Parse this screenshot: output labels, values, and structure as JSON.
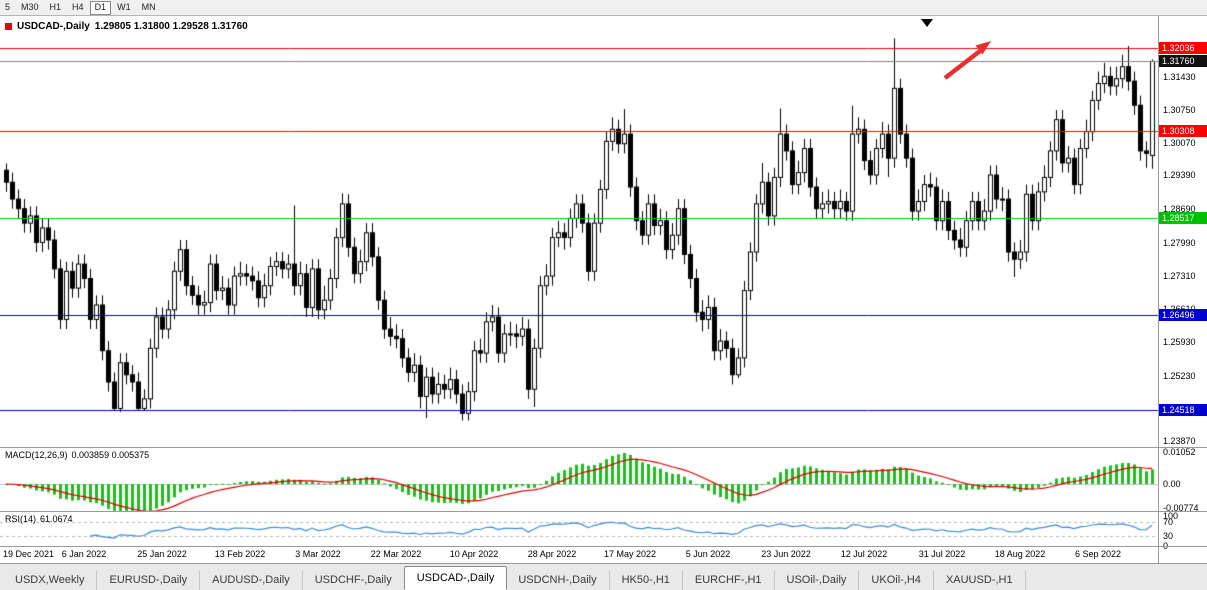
{
  "toolbar": {
    "timeframes": [
      {
        "label": "5",
        "active": false
      },
      {
        "label": "M30",
        "active": false
      },
      {
        "label": "H1",
        "active": false
      },
      {
        "label": "H4",
        "active": false
      },
      {
        "label": "D1",
        "active": true
      },
      {
        "label": "W1",
        "active": false
      },
      {
        "label": "MN",
        "active": false
      }
    ]
  },
  "chart": {
    "symbol_period": "USDCAD-,Daily",
    "ohlc_text": "1.29805 1.31800 1.29528 1.31760",
    "axis_labels": [
      "1.31430",
      "1.30750",
      "1.30070",
      "1.29390",
      "1.28690",
      "1.27990",
      "1.27310",
      "1.26610",
      "1.25930",
      "1.25230",
      "1.23870"
    ],
    "badges": [
      {
        "label": "1.32036",
        "price": 1.32036,
        "bg": "#ff0000"
      },
      {
        "label": "1.31760",
        "price": 1.3176,
        "bg": "#111111"
      },
      {
        "label": "1.30308",
        "price": 1.30308,
        "bg": "#ff0000"
      },
      {
        "label": "1.28517",
        "price": 1.28517,
        "bg": "#00c000"
      },
      {
        "label": "1.26496",
        "price": 1.26496,
        "bg": "#0000d0"
      },
      {
        "label": "1.24518",
        "price": 1.24518,
        "bg": "#0000d0"
      }
    ],
    "macd_label": "MACD(12,26,9)",
    "macd_values": "0.003859 0.005375",
    "macd_axis": [
      {
        "label": "0.01052",
        "value": 0.01052
      },
      {
        "label": "0.00",
        "value": 0
      },
      {
        "label": "-0.00774",
        "value": -0.00774
      }
    ],
    "rsi_label": "RSI(14)",
    "rsi_value": "61.0674",
    "rsi_axis": [
      {
        "label": "100",
        "value": 100
      },
      {
        "label": "70",
        "value": 70
      },
      {
        "label": "30",
        "value": 30
      },
      {
        "label": "0",
        "value": 0
      }
    ]
  },
  "chart_data": {
    "type": "candlestick",
    "symbol": "USDCAD",
    "period": "Daily",
    "display_ohlc": {
      "open": 1.29805,
      "high": 1.318,
      "low": 1.29528,
      "close": 1.3176
    },
    "ylim": [
      1.2375,
      1.3262
    ],
    "price_lines": [
      {
        "price": 1.32036,
        "color": "#ff0000"
      },
      {
        "price": 1.30308,
        "color": "#ff0000"
      },
      {
        "price": 1.28517,
        "color": "#00c800"
      },
      {
        "price": 1.26496,
        "color": "#0000d0"
      },
      {
        "price": 1.24518,
        "color": "#0000d0"
      }
    ],
    "bid_line": {
      "price": 1.3176,
      "color": "#808080"
    },
    "x_labels": [
      "19 Dec 2021",
      "6 Jan 2022",
      "25 Jan 2022",
      "13 Feb 2022",
      "3 Mar 2022",
      "22 Mar 2022",
      "10 Apr 2022",
      "28 Apr 2022",
      "17 May 2022",
      "5 Jun 2022",
      "23 Jun 2022",
      "12 Jul 2022",
      "31 Jul 2022",
      "18 Aug 2022",
      "6 Sep 2022"
    ],
    "x_label_every": 13,
    "style": {
      "up_fill": "#ffffff",
      "down_fill": "#000000",
      "outline": "#000000"
    },
    "indicators": {
      "macd": {
        "fast": 12,
        "slow": 26,
        "signal": 9,
        "main_value": 0.003859,
        "signal_value": 0.005375,
        "range": [
          -0.0088,
          0.0118
        ],
        "histogram_color": "#22bb22",
        "signal_color": "#dd0000"
      },
      "rsi": {
        "period": 14,
        "value": 61.0674,
        "levels": [
          70,
          30
        ],
        "range": [
          0,
          100
        ],
        "line_color": "#3c8cd8"
      }
    },
    "candles": [
      [
        1.295,
        1.2964,
        1.2905,
        1.2925
      ],
      [
        1.2925,
        1.2945,
        1.287,
        1.289
      ],
      [
        1.289,
        1.291,
        1.285,
        1.287
      ],
      [
        1.287,
        1.289,
        1.282,
        1.284
      ],
      [
        1.284,
        1.2875,
        1.282,
        1.2855
      ],
      [
        1.2855,
        1.2875,
        1.278,
        1.28
      ],
      [
        1.28,
        1.285,
        1.278,
        1.283
      ],
      [
        1.283,
        1.285,
        1.2785,
        1.2805
      ],
      [
        1.2805,
        1.2825,
        1.2725,
        1.2745
      ],
      [
        1.2745,
        1.2765,
        1.262,
        1.264
      ],
      [
        1.264,
        1.276,
        1.262,
        1.274
      ],
      [
        1.274,
        1.276,
        1.2685,
        1.2705
      ],
      [
        1.2705,
        1.2775,
        1.2685,
        1.2755
      ],
      [
        1.2755,
        1.2775,
        1.2705,
        1.2725
      ],
      [
        1.2725,
        1.2745,
        1.262,
        1.264
      ],
      [
        1.264,
        1.269,
        1.262,
        1.267
      ],
      [
        1.267,
        1.269,
        1.2555,
        1.2575
      ],
      [
        1.2575,
        1.2595,
        1.249,
        1.251
      ],
      [
        1.251,
        1.253,
        1.245,
        1.2455
      ],
      [
        1.2455,
        1.257,
        1.2448,
        1.255
      ],
      [
        1.255,
        1.257,
        1.2505,
        1.2525
      ],
      [
        1.2525,
        1.2545,
        1.249,
        1.251
      ],
      [
        1.251,
        1.253,
        1.2452,
        1.2455
      ],
      [
        1.2455,
        1.2495,
        1.245,
        1.2475
      ],
      [
        1.2475,
        1.26,
        1.2455,
        1.258
      ],
      [
        1.258,
        1.2665,
        1.256,
        1.2645
      ],
      [
        1.2645,
        1.2665,
        1.26,
        1.262
      ],
      [
        1.262,
        1.268,
        1.26,
        1.266
      ],
      [
        1.266,
        1.276,
        1.264,
        1.274
      ],
      [
        1.274,
        1.2805,
        1.272,
        1.2785
      ],
      [
        1.2785,
        1.2805,
        1.269,
        1.271
      ],
      [
        1.271,
        1.273,
        1.267,
        1.269
      ],
      [
        1.269,
        1.271,
        1.265,
        1.267
      ],
      [
        1.267,
        1.27,
        1.265,
        1.2675
      ],
      [
        1.2675,
        1.2775,
        1.2655,
        1.2755
      ],
      [
        1.2755,
        1.2775,
        1.268,
        1.27
      ],
      [
        1.27,
        1.273,
        1.268,
        1.2705
      ],
      [
        1.2705,
        1.2725,
        1.265,
        1.267
      ],
      [
        1.267,
        1.275,
        1.265,
        1.273
      ],
      [
        1.273,
        1.276,
        1.271,
        1.2735
      ],
      [
        1.2735,
        1.2755,
        1.271,
        1.273
      ],
      [
        1.273,
        1.275,
        1.27,
        1.272
      ],
      [
        1.272,
        1.274,
        1.2665,
        1.2685
      ],
      [
        1.2685,
        1.2735,
        1.2665,
        1.271
      ],
      [
        1.271,
        1.277,
        1.269,
        1.275
      ],
      [
        1.275,
        1.278,
        1.273,
        1.276
      ],
      [
        1.276,
        1.278,
        1.2725,
        1.2745
      ],
      [
        1.2745,
        1.2775,
        1.2725,
        1.2755
      ],
      [
        1.2755,
        1.2877,
        1.269,
        1.271
      ],
      [
        1.271,
        1.276,
        1.269,
        1.2735
      ],
      [
        1.2735,
        1.2755,
        1.2645,
        1.2665
      ],
      [
        1.2665,
        1.2765,
        1.2645,
        1.2745
      ],
      [
        1.2745,
        1.2765,
        1.264,
        1.266
      ],
      [
        1.266,
        1.271,
        1.264,
        1.268
      ],
      [
        1.268,
        1.2745,
        1.266,
        1.2725
      ],
      [
        1.2725,
        1.283,
        1.2705,
        1.281
      ],
      [
        1.281,
        1.2902,
        1.279,
        1.288
      ],
      [
        1.288,
        1.29,
        1.277,
        1.279
      ],
      [
        1.279,
        1.281,
        1.2715,
        1.2735
      ],
      [
        1.2735,
        1.2785,
        1.2715,
        1.276
      ],
      [
        1.276,
        1.284,
        1.274,
        1.282
      ],
      [
        1.282,
        1.284,
        1.275,
        1.277
      ],
      [
        1.277,
        1.279,
        1.266,
        1.268
      ],
      [
        1.268,
        1.27,
        1.26,
        1.262
      ],
      [
        1.262,
        1.2645,
        1.2585,
        1.2605
      ],
      [
        1.2605,
        1.263,
        1.258,
        1.26
      ],
      [
        1.26,
        1.262,
        1.254,
        1.256
      ],
      [
        1.256,
        1.258,
        1.251,
        1.253
      ],
      [
        1.253,
        1.257,
        1.251,
        1.2545
      ],
      [
        1.2545,
        1.2565,
        1.2455,
        1.248
      ],
      [
        1.248,
        1.254,
        1.2435,
        1.252
      ],
      [
        1.252,
        1.254,
        1.2465,
        1.2485
      ],
      [
        1.2485,
        1.253,
        1.2465,
        1.2505
      ],
      [
        1.2505,
        1.2525,
        1.2475,
        1.2495
      ],
      [
        1.2495,
        1.254,
        1.2475,
        1.2515
      ],
      [
        1.2515,
        1.2535,
        1.2465,
        1.2485
      ],
      [
        1.2485,
        1.2505,
        1.243,
        1.2445
      ],
      [
        1.2445,
        1.251,
        1.243,
        1.249
      ],
      [
        1.249,
        1.2595,
        1.247,
        1.2575
      ],
      [
        1.2575,
        1.26,
        1.255,
        1.257
      ],
      [
        1.257,
        1.2655,
        1.255,
        1.2635
      ],
      [
        1.2635,
        1.267,
        1.2615,
        1.2645
      ],
      [
        1.2645,
        1.2665,
        1.255,
        1.257
      ],
      [
        1.257,
        1.263,
        1.255,
        1.261
      ],
      [
        1.261,
        1.2635,
        1.2585,
        1.261
      ],
      [
        1.261,
        1.263,
        1.258,
        1.2605
      ],
      [
        1.2605,
        1.2645,
        1.2585,
        1.262
      ],
      [
        1.262,
        1.264,
        1.2475,
        1.2495
      ],
      [
        1.2495,
        1.26,
        1.2458,
        1.258
      ],
      [
        1.258,
        1.273,
        1.256,
        1.271
      ],
      [
        1.271,
        1.2755,
        1.269,
        1.273
      ],
      [
        1.273,
        1.283,
        1.271,
        1.281
      ],
      [
        1.281,
        1.2845,
        1.279,
        1.282
      ],
      [
        1.282,
        1.284,
        1.2785,
        1.281
      ],
      [
        1.281,
        1.287,
        1.279,
        1.285
      ],
      [
        1.285,
        1.29,
        1.283,
        1.288
      ],
      [
        1.288,
        1.29,
        1.282,
        1.284
      ],
      [
        1.284,
        1.286,
        1.272,
        1.274
      ],
      [
        1.274,
        1.286,
        1.272,
        1.284
      ],
      [
        1.284,
        1.293,
        1.282,
        1.291
      ],
      [
        1.291,
        1.303,
        1.289,
        1.301
      ],
      [
        1.301,
        1.306,
        1.299,
        1.3035
      ],
      [
        1.3035,
        1.3055,
        1.2985,
        1.3005
      ],
      [
        1.3005,
        1.3077,
        1.2985,
        1.3025
      ],
      [
        1.3025,
        1.3045,
        1.2895,
        1.2915
      ],
      [
        1.2915,
        1.2935,
        1.2825,
        1.2845
      ],
      [
        1.2845,
        1.2865,
        1.2795,
        1.2815
      ],
      [
        1.2815,
        1.29,
        1.2795,
        1.288
      ],
      [
        1.288,
        1.29,
        1.2815,
        1.2835
      ],
      [
        1.2835,
        1.287,
        1.2815,
        1.2845
      ],
      [
        1.2845,
        1.2865,
        1.2765,
        1.2785
      ],
      [
        1.2785,
        1.284,
        1.2765,
        1.2815
      ],
      [
        1.2815,
        1.289,
        1.2795,
        1.287
      ],
      [
        1.287,
        1.289,
        1.2755,
        1.2775
      ],
      [
        1.2775,
        1.2795,
        1.2705,
        1.2725
      ],
      [
        1.2725,
        1.2745,
        1.2635,
        1.2655
      ],
      [
        1.2655,
        1.268,
        1.2615,
        1.264
      ],
      [
        1.264,
        1.269,
        1.262,
        1.2665
      ],
      [
        1.2665,
        1.2685,
        1.2555,
        1.2575
      ],
      [
        1.2575,
        1.262,
        1.2555,
        1.2595
      ],
      [
        1.2595,
        1.2615,
        1.256,
        1.258
      ],
      [
        1.258,
        1.26,
        1.2505,
        1.2525
      ],
      [
        1.2525,
        1.258,
        1.2518,
        1.256
      ],
      [
        1.256,
        1.272,
        1.254,
        1.27
      ],
      [
        1.27,
        1.28,
        1.268,
        1.278
      ],
      [
        1.278,
        1.29,
        1.276,
        1.288
      ],
      [
        1.288,
        1.2965,
        1.286,
        1.2925
      ],
      [
        1.2925,
        1.2945,
        1.2835,
        1.2855
      ],
      [
        1.2855,
        1.2955,
        1.2835,
        1.2935
      ],
      [
        1.2935,
        1.3078,
        1.2915,
        1.3025
      ],
      [
        1.3025,
        1.3045,
        1.297,
        1.299
      ],
      [
        1.299,
        1.301,
        1.29,
        1.292
      ],
      [
        1.292,
        1.297,
        1.29,
        1.2945
      ],
      [
        1.2945,
        1.3015,
        1.2925,
        1.2995
      ],
      [
        1.2995,
        1.3015,
        1.2895,
        1.2915
      ],
      [
        1.2915,
        1.2935,
        1.285,
        1.287
      ],
      [
        1.287,
        1.2905,
        1.285,
        1.288
      ],
      [
        1.288,
        1.291,
        1.286,
        1.2885
      ],
      [
        1.2885,
        1.2905,
        1.285,
        1.287
      ],
      [
        1.287,
        1.291,
        1.285,
        1.2885
      ],
      [
        1.2885,
        1.2905,
        1.2845,
        1.2865
      ],
      [
        1.2865,
        1.3084,
        1.2845,
        1.3025
      ],
      [
        1.3025,
        1.306,
        1.3005,
        1.3035
      ],
      [
        1.3035,
        1.3055,
        1.295,
        1.297
      ],
      [
        1.297,
        1.299,
        1.292,
        1.294
      ],
      [
        1.294,
        1.3015,
        1.292,
        1.2995
      ],
      [
        1.2995,
        1.305,
        1.2975,
        1.3025
      ],
      [
        1.3025,
        1.3045,
        1.2936,
        1.2975
      ],
      [
        1.2975,
        1.3224,
        1.2955,
        1.312
      ],
      [
        1.312,
        1.314,
        1.3005,
        1.3025
      ],
      [
        1.3025,
        1.3045,
        1.2955,
        1.2975
      ],
      [
        1.2975,
        1.2995,
        1.2845,
        1.2865
      ],
      [
        1.2865,
        1.291,
        1.2845,
        1.2885
      ],
      [
        1.2885,
        1.294,
        1.2865,
        1.292
      ],
      [
        1.292,
        1.2945,
        1.2895,
        1.2915
      ],
      [
        1.2915,
        1.2935,
        1.2825,
        1.2845
      ],
      [
        1.2845,
        1.291,
        1.2825,
        1.2885
      ],
      [
        1.2885,
        1.2905,
        1.2805,
        1.2825
      ],
      [
        1.2825,
        1.2845,
        1.2785,
        1.2805
      ],
      [
        1.2805,
        1.283,
        1.277,
        1.279
      ],
      [
        1.279,
        1.2865,
        1.277,
        1.2845
      ],
      [
        1.2845,
        1.2905,
        1.2825,
        1.2885
      ],
      [
        1.2885,
        1.2905,
        1.2825,
        1.2845
      ],
      [
        1.2845,
        1.289,
        1.2825,
        1.2865
      ],
      [
        1.2865,
        1.296,
        1.2845,
        1.294
      ],
      [
        1.294,
        1.296,
        1.287,
        1.289
      ],
      [
        1.289,
        1.2915,
        1.2865,
        1.289
      ],
      [
        1.289,
        1.291,
        1.276,
        1.278
      ],
      [
        1.278,
        1.28,
        1.2728,
        1.2765
      ],
      [
        1.2765,
        1.2805,
        1.2745,
        1.278
      ],
      [
        1.278,
        1.292,
        1.276,
        1.29
      ],
      [
        1.29,
        1.292,
        1.2825,
        1.2845
      ],
      [
        1.2845,
        1.2925,
        1.2825,
        1.2905
      ],
      [
        1.2905,
        1.296,
        1.2885,
        1.2935
      ],
      [
        1.2935,
        1.301,
        1.2915,
        1.299
      ],
      [
        1.299,
        1.3075,
        1.297,
        1.3055
      ],
      [
        1.3055,
        1.3075,
        1.2945,
        1.2965
      ],
      [
        1.2965,
        1.3,
        1.2945,
        1.2975
      ],
      [
        1.2975,
        1.2995,
        1.29,
        1.292
      ],
      [
        1.292,
        1.3015,
        1.29,
        1.2995
      ],
      [
        1.2995,
        1.3055,
        1.2975,
        1.303
      ],
      [
        1.303,
        1.3115,
        1.301,
        1.3095
      ],
      [
        1.3095,
        1.3155,
        1.3075,
        1.313
      ],
      [
        1.313,
        1.3173,
        1.311,
        1.3145
      ],
      [
        1.3145,
        1.3165,
        1.3105,
        1.3125
      ],
      [
        1.3125,
        1.3165,
        1.3105,
        1.314
      ],
      [
        1.314,
        1.319,
        1.312,
        1.3165
      ],
      [
        1.3165,
        1.3208,
        1.3115,
        1.3135
      ],
      [
        1.3135,
        1.3155,
        1.3065,
        1.3085
      ],
      [
        1.3085,
        1.3105,
        1.297,
        1.299
      ],
      [
        1.299,
        1.301,
        1.2955,
        1.2985
      ],
      [
        1.29805,
        1.318,
        1.29528,
        1.3176
      ]
    ]
  },
  "objects": {
    "trend_arrow": {
      "color": "#e93030"
    },
    "shift_marker": {
      "color": "#000000"
    }
  },
  "tabs": [
    {
      "label": "USDX,Weekly",
      "active": false
    },
    {
      "label": "EURUSD-,Daily",
      "active": false
    },
    {
      "label": "AUDUSD-,Daily",
      "active": false
    },
    {
      "label": "USDCHF-,Daily",
      "active": false
    },
    {
      "label": "USDCAD-,Daily",
      "active": true
    },
    {
      "label": "USDCNH-,Daily",
      "active": false
    },
    {
      "label": "HK50-,H1",
      "active": false
    },
    {
      "label": "EURCHF-,H1",
      "active": false
    },
    {
      "label": "USOil-,Daily",
      "active": false
    },
    {
      "label": "UKOil-,H4",
      "active": false
    },
    {
      "label": "XAUUSD-,H1",
      "active": false
    }
  ]
}
